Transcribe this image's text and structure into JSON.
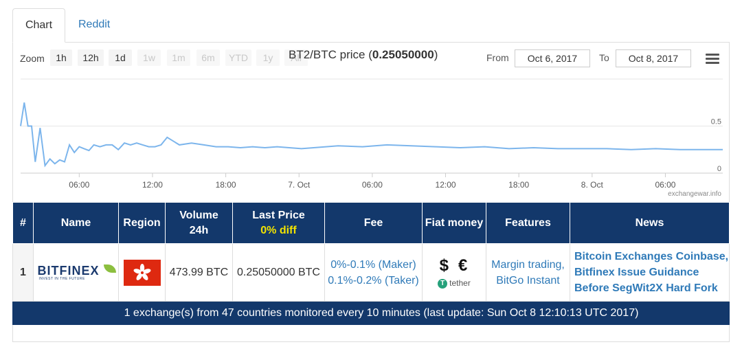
{
  "tabs": [
    {
      "label": "Chart"
    },
    {
      "label": "Reddit"
    }
  ],
  "toolbar": {
    "zoom_label": "Zoom",
    "ranges": [
      "1h",
      "12h",
      "1d",
      "1w",
      "1m",
      "6m",
      "YTD",
      "1y",
      "All"
    ],
    "active_ranges": [
      "1h",
      "12h",
      "1d"
    ],
    "from_label": "From",
    "to_label": "To",
    "from_date": "Oct 6, 2017",
    "to_date": "Oct 8, 2017"
  },
  "chart_data": {
    "type": "line",
    "title_prefix": "BT2/BTC price (",
    "title_value": "0.25050000",
    "title_suffix": ")",
    "x_tick_labels": [
      "06:00",
      "12:00",
      "18:00",
      "7. Oct",
      "06:00",
      "12:00",
      "18:00",
      "8. Oct",
      "06:00"
    ],
    "y_tick_labels": [
      "0.5",
      "0"
    ],
    "ylim": [
      0,
      1.0
    ],
    "series": [
      {
        "color": "#7cb5ec",
        "x_hours": [
          0,
          0.3,
          0.6,
          0.9,
          1.2,
          1.6,
          2.0,
          2.4,
          2.8,
          3.2,
          3.6,
          4.0,
          4.4,
          4.8,
          5.2,
          5.6,
          6.0,
          6.5,
          7.0,
          7.5,
          8.0,
          8.5,
          9.0,
          9.5,
          10.0,
          10.5,
          11.0,
          11.5,
          12.0,
          13.0,
          14.0,
          15.0,
          16.0,
          17.0,
          18.0,
          19.0,
          20.0,
          21.0,
          22.0,
          23.0,
          24.0,
          26.0,
          28.0,
          30.0,
          32.0,
          34.0,
          36.0,
          38.0,
          40.0,
          42.0,
          44.0,
          46.0,
          48.0,
          50.0,
          52.0,
          54.0,
          56.0,
          57.5
        ],
        "y_values": [
          0.5,
          0.75,
          0.5,
          0.5,
          0.12,
          0.48,
          0.08,
          0.15,
          0.1,
          0.14,
          0.12,
          0.3,
          0.22,
          0.28,
          0.26,
          0.24,
          0.3,
          0.28,
          0.3,
          0.3,
          0.25,
          0.32,
          0.3,
          0.32,
          0.3,
          0.28,
          0.28,
          0.3,
          0.38,
          0.3,
          0.32,
          0.3,
          0.28,
          0.28,
          0.27,
          0.28,
          0.27,
          0.28,
          0.27,
          0.26,
          0.27,
          0.29,
          0.28,
          0.3,
          0.29,
          0.28,
          0.27,
          0.28,
          0.26,
          0.27,
          0.26,
          0.26,
          0.26,
          0.25,
          0.26,
          0.25,
          0.25,
          0.25
        ]
      }
    ],
    "credit": "exchangewar.info"
  },
  "table": {
    "headers": {
      "rank": "#",
      "name": "Name",
      "region": "Region",
      "volume_line1": "Volume",
      "volume_line2": "24h",
      "last_price_line1": "Last Price",
      "last_price_line2": "0% diff",
      "fee": "Fee",
      "fiat": "Fiat money",
      "features": "Features",
      "news": "News"
    },
    "rows": [
      {
        "rank": "1",
        "logo_word": "BITFINEX",
        "logo_tagline": "INVEST IN THE FUTURE",
        "flag": "hong-kong-flag",
        "volume": "473.99 BTC",
        "last_price": "0.25050000 BTC",
        "fee_maker": "0%-0.1% (Maker)",
        "fee_taker": "0.1%-0.2% (Taker)",
        "fiat_symbols": "$€",
        "fiat_tether": "tether",
        "feature_1": "Margin trading,",
        "feature_2": "BitGo Instant",
        "news_line1": "Bitcoin Exchanges Coinbase,",
        "news_line2": "Bitfinex Issue Guidance",
        "news_line3": "Before SegWit2X Hard Fork"
      }
    ],
    "footer": "1 exchange(s) from 47 countries monitored every 10 minutes (last update: Sun Oct 8 12:10:13 UTC 2017)"
  }
}
